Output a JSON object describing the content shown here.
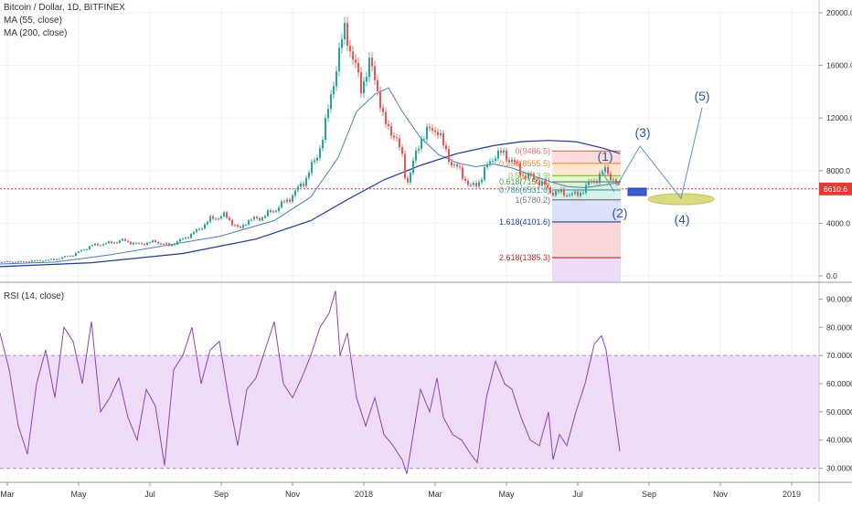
{
  "header": {
    "symbol_line": "Bitcoin / Dollar, 1D, BITFINEX",
    "ma55_label": "MA (55, close)",
    "ma200_label": "MA (200, close)",
    "rsi_label": "RSI (14, close)"
  },
  "colors": {
    "candle_up": "#26a69a",
    "candle_down": "#ef5350",
    "ma55": "#4a7fb5",
    "ma200": "#1f3a93",
    "rsi_line": "#8e44ad",
    "rsi_band": "#efdcf7",
    "price_line": "#e53935",
    "wave_lines": "#5b8fc7",
    "wave_labels": "#2c5aa0",
    "ellipse": "#b7b43a",
    "box": "#1e3fa8"
  },
  "chart_data": [
    {
      "type": "candlestick",
      "title": "Bitcoin / Dollar, 1D, BITFINEX",
      "x_ticks": [
        "Mar",
        "May",
        "Jul",
        "Sep",
        "Nov",
        "2018",
        "Mar",
        "May",
        "Jul",
        "Sep",
        "Nov",
        "2019"
      ],
      "y_ticks": [
        "20000.0",
        "16000.0",
        "12000.0",
        "8000.0",
        "4000.0",
        "0.0"
      ],
      "ylim": [
        0,
        20000
      ],
      "current_price": "6610.6",
      "close": [
        [
          0,
          1050
        ],
        [
          30,
          1100
        ],
        [
          60,
          1250
        ],
        [
          80,
          1600
        ],
        [
          100,
          2300
        ],
        [
          120,
          2500
        ],
        [
          135,
          2700
        ],
        [
          150,
          2400
        ],
        [
          170,
          2600
        ],
        [
          185,
          2300
        ],
        [
          200,
          2800
        ],
        [
          215,
          3400
        ],
        [
          230,
          4300
        ],
        [
          245,
          4600
        ],
        [
          255,
          4000
        ],
        [
          262,
          3500
        ],
        [
          270,
          4200
        ],
        [
          285,
          4400
        ],
        [
          300,
          5000
        ],
        [
          315,
          5800
        ],
        [
          325,
          6500
        ],
        [
          335,
          7500
        ],
        [
          345,
          8800
        ],
        [
          355,
          11000
        ],
        [
          365,
          15000
        ],
        [
          372,
          17000
        ],
        [
          378,
          19200
        ],
        [
          385,
          16500
        ],
        [
          395,
          14500
        ],
        [
          405,
          16000
        ],
        [
          412,
          14800
        ],
        [
          420,
          11500
        ],
        [
          430,
          11000
        ],
        [
          440,
          9000
        ],
        [
          445,
          7000
        ],
        [
          452,
          8500
        ],
        [
          460,
          10500
        ],
        [
          470,
          11000
        ],
        [
          478,
          11300
        ],
        [
          485,
          9800
        ],
        [
          495,
          8500
        ],
        [
          505,
          7800
        ],
        [
          515,
          6700
        ],
        [
          522,
          7000
        ],
        [
          532,
          8200
        ],
        [
          542,
          9300
        ],
        [
          552,
          9200
        ],
        [
          560,
          8800
        ],
        [
          570,
          7800
        ],
        [
          580,
          7500
        ],
        [
          590,
          7200
        ],
        [
          600,
          6500
        ],
        [
          610,
          6300
        ],
        [
          620,
          6300
        ],
        [
          630,
          6100
        ],
        [
          640,
          6700
        ],
        [
          650,
          7300
        ],
        [
          658,
          7700
        ],
        [
          663,
          8100
        ],
        [
          670,
          7400
        ],
        [
          678,
          6600
        ]
      ],
      "ma55": [
        [
          0,
          900
        ],
        [
          60,
          1050
        ],
        [
          120,
          1600
        ],
        [
          180,
          2300
        ],
        [
          240,
          3000
        ],
        [
          300,
          4200
        ],
        [
          340,
          6000
        ],
        [
          370,
          9000
        ],
        [
          390,
          12500
        ],
        [
          410,
          13800
        ],
        [
          425,
          14300
        ],
        [
          440,
          12500
        ],
        [
          460,
          10500
        ],
        [
          480,
          9200
        ],
        [
          500,
          8600
        ],
        [
          520,
          8300
        ],
        [
          540,
          8500
        ],
        [
          560,
          8200
        ],
        [
          580,
          7700
        ],
        [
          600,
          7200
        ],
        [
          620,
          6800
        ],
        [
          640,
          6700
        ],
        [
          660,
          6900
        ],
        [
          678,
          7100
        ]
      ],
      "ma200": [
        [
          0,
          700
        ],
        [
          100,
          1000
        ],
        [
          200,
          1700
        ],
        [
          280,
          2800
        ],
        [
          340,
          4200
        ],
        [
          380,
          5800
        ],
        [
          420,
          7300
        ],
        [
          460,
          8400
        ],
        [
          500,
          9300
        ],
        [
          540,
          9900
        ],
        [
          570,
          10200
        ],
        [
          600,
          10300
        ],
        [
          630,
          10200
        ],
        [
          660,
          9700
        ],
        [
          678,
          9300
        ]
      ],
      "fib_levels": [
        {
          "label": "0(9486.5)",
          "price": 9486.5,
          "color": "#e57373"
        },
        {
          "label": "0.236(8555.5)",
          "price": 8555.5,
          "color": "#ef8c3a"
        },
        {
          "label": "0.5(7613.9)",
          "price": 7613.9,
          "color": "#8bc34a"
        },
        {
          "label": "0.618(7150.4)",
          "price": 7150.4,
          "color": "#43a047"
        },
        {
          "label": "0.786(6531.6)",
          "price": 6531.6,
          "color": "#26a69a"
        },
        {
          "label": "1(5780.2)",
          "price": 5780.2,
          "color": "#777777"
        },
        {
          "label": "1.618(4101.6)",
          "price": 4101.6,
          "color": "#1e3fa8"
        },
        {
          "label": "2.618(1385.3)",
          "price": 1385.3,
          "color": "#c62828"
        }
      ],
      "wave_labels": [
        "(1)",
        "(2)",
        "(3)",
        "(4)",
        "(5)"
      ]
    },
    {
      "type": "line",
      "title": "RSI (14, close)",
      "y_ticks": [
        "90.0000",
        "80.0000",
        "70.0000",
        "60.0000",
        "50.0000",
        "40.0000",
        "30.0000"
      ],
      "ylim": [
        25,
        95
      ],
      "band": [
        30,
        70
      ],
      "values": [
        [
          0,
          78
        ],
        [
          10,
          65
        ],
        [
          20,
          45
        ],
        [
          30,
          35
        ],
        [
          40,
          60
        ],
        [
          50,
          72
        ],
        [
          60,
          55
        ],
        [
          70,
          80
        ],
        [
          80,
          75
        ],
        [
          90,
          60
        ],
        [
          100,
          82
        ],
        [
          110,
          50
        ],
        [
          120,
          55
        ],
        [
          130,
          62
        ],
        [
          140,
          48
        ],
        [
          150,
          40
        ],
        [
          160,
          58
        ],
        [
          170,
          52
        ],
        [
          180,
          31
        ],
        [
          190,
          65
        ],
        [
          200,
          70
        ],
        [
          210,
          80
        ],
        [
          220,
          60
        ],
        [
          230,
          72
        ],
        [
          240,
          75
        ],
        [
          250,
          55
        ],
        [
          260,
          38
        ],
        [
          270,
          58
        ],
        [
          280,
          62
        ],
        [
          290,
          72
        ],
        [
          300,
          82
        ],
        [
          310,
          60
        ],
        [
          320,
          55
        ],
        [
          330,
          62
        ],
        [
          340,
          70
        ],
        [
          350,
          80
        ],
        [
          360,
          85
        ],
        [
          367,
          93
        ],
        [
          372,
          70
        ],
        [
          380,
          78
        ],
        [
          390,
          55
        ],
        [
          400,
          45
        ],
        [
          410,
          55
        ],
        [
          420,
          42
        ],
        [
          430,
          38
        ],
        [
          440,
          33
        ],
        [
          445,
          28
        ],
        [
          452,
          42
        ],
        [
          460,
          58
        ],
        [
          470,
          50
        ],
        [
          478,
          62
        ],
        [
          485,
          48
        ],
        [
          495,
          42
        ],
        [
          505,
          40
        ],
        [
          515,
          35
        ],
        [
          522,
          32
        ],
        [
          532,
          55
        ],
        [
          542,
          68
        ],
        [
          552,
          60
        ],
        [
          560,
          58
        ],
        [
          570,
          48
        ],
        [
          580,
          40
        ],
        [
          590,
          38
        ],
        [
          600,
          50
        ],
        [
          605,
          33
        ],
        [
          612,
          42
        ],
        [
          620,
          38
        ],
        [
          630,
          50
        ],
        [
          640,
          60
        ],
        [
          650,
          74
        ],
        [
          658,
          77
        ],
        [
          663,
          72
        ],
        [
          670,
          55
        ],
        [
          678,
          36
        ]
      ],
      "x_ticks": [
        "Mar",
        "May",
        "Jul",
        "Sep",
        "Nov",
        "2018",
        "Mar",
        "May",
        "Jul",
        "Sep",
        "Nov",
        "2019"
      ]
    }
  ]
}
